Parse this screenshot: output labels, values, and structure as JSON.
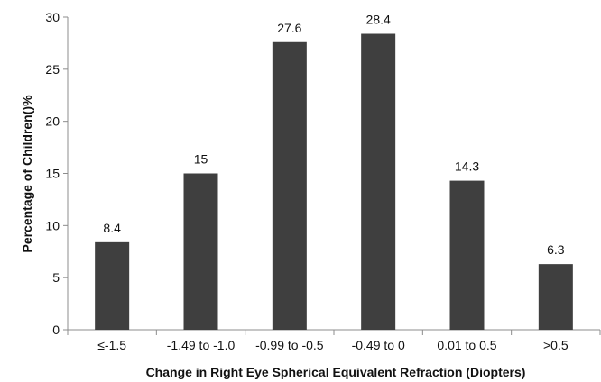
{
  "chart_data": {
    "type": "bar",
    "categories": [
      "≤-1.5",
      "-1.49 to -1.0",
      "-0.99 to -0.5",
      "-0.49 to 0",
      "0.01 to 0.5",
      ">0.5"
    ],
    "values": [
      8.4,
      15,
      27.6,
      28.4,
      14.3,
      6.3
    ],
    "value_labels": [
      "8.4",
      "15",
      "27.6",
      "28.4",
      "14.3",
      "6.3"
    ],
    "title": "",
    "xlabel": "Change in Right Eye Spherical Equivalent Refraction (Diopters)",
    "ylabel": "Percentage of Children()%",
    "ylim": [
      0,
      30
    ],
    "yticks": [
      0,
      5,
      10,
      15,
      20,
      25,
      30
    ],
    "grid": false,
    "legend": "none",
    "bar_color": "#3f3f3f",
    "axis_color": "#8c8c8c"
  }
}
